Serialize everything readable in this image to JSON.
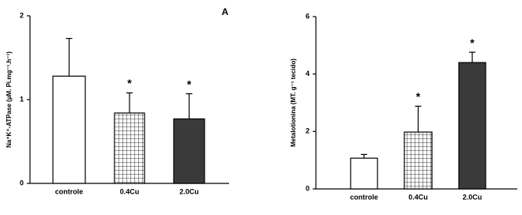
{
  "chart_data": [
    {
      "type": "bar",
      "annotation": "A",
      "ylabel": "Na⁺K⁺-ATPase (µM. Pi.mg⁻¹.h⁻¹)",
      "categories": [
        "controle",
        "0.4Cu",
        "2.0Cu"
      ],
      "values": [
        1.28,
        0.84,
        0.77
      ],
      "errors": [
        0.45,
        0.24,
        0.3
      ],
      "significance": [
        null,
        "*",
        "*"
      ],
      "fills": [
        "white",
        "grid",
        "dark"
      ],
      "ylim": [
        0,
        2
      ],
      "yticks": [
        0,
        1,
        2
      ]
    },
    {
      "type": "bar",
      "ylabel": "Metalotionina (MT. g⁻¹ tecido)",
      "categories": [
        "controle",
        "0.4Cu",
        "2.0Cu"
      ],
      "values": [
        1.07,
        1.98,
        4.4
      ],
      "errors": [
        0.13,
        0.9,
        0.36
      ],
      "significance": [
        null,
        "*",
        "*"
      ],
      "fills": [
        "white",
        "grid",
        "dark"
      ],
      "ylim": [
        0,
        6
      ],
      "yticks": [
        0,
        2,
        4,
        6
      ]
    }
  ]
}
